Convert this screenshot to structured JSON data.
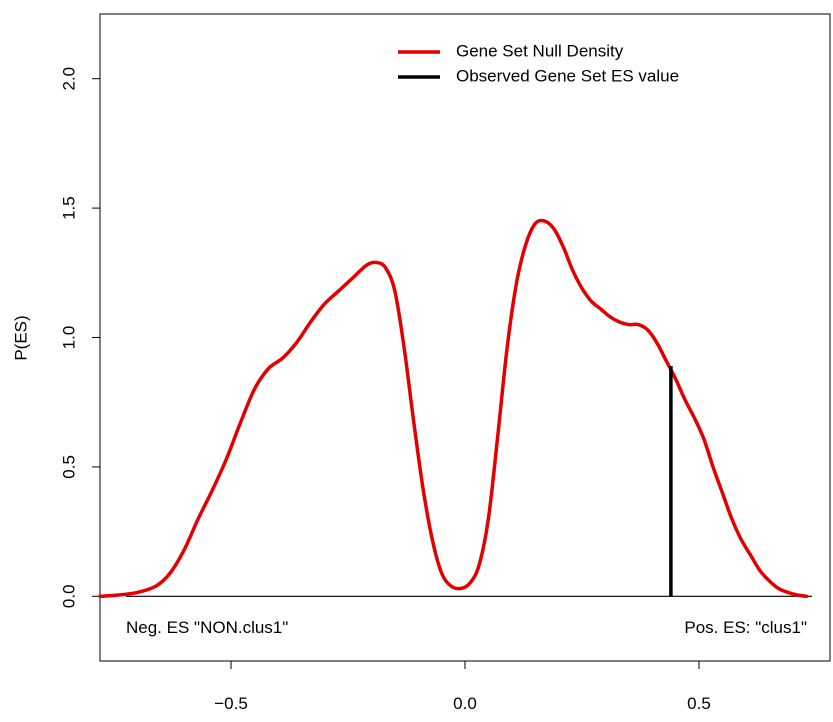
{
  "chart_data": {
    "type": "line",
    "title": "",
    "xlabel": "",
    "ylabel": "P(ES)",
    "xlim": [
      -0.78,
      0.78
    ],
    "ylim": [
      -0.25,
      2.25
    ],
    "x_ticks": [
      {
        "value": -0.5,
        "label": "−0.5"
      },
      {
        "value": 0.0,
        "label": "0.0"
      },
      {
        "value": 0.5,
        "label": "0.5"
      }
    ],
    "y_ticks": [
      {
        "value": 0.0,
        "label": "0.0"
      },
      {
        "value": 0.5,
        "label": "0.5"
      },
      {
        "value": 1.0,
        "label": "1.0"
      },
      {
        "value": 1.5,
        "label": "1.5"
      },
      {
        "value": 2.0,
        "label": "2.0"
      }
    ],
    "grid": false,
    "legend_position": "top-right",
    "series": [
      {
        "name": "Gene Set Null Density",
        "color": "#e30000",
        "points": [
          [
            -0.78,
            0.0
          ],
          [
            -0.74,
            0.005
          ],
          [
            -0.7,
            0.015
          ],
          [
            -0.66,
            0.04
          ],
          [
            -0.63,
            0.09
          ],
          [
            -0.6,
            0.18
          ],
          [
            -0.57,
            0.3
          ],
          [
            -0.54,
            0.41
          ],
          [
            -0.51,
            0.53
          ],
          [
            -0.48,
            0.67
          ],
          [
            -0.45,
            0.8
          ],
          [
            -0.42,
            0.88
          ],
          [
            -0.39,
            0.92
          ],
          [
            -0.36,
            0.98
          ],
          [
            -0.33,
            1.06
          ],
          [
            -0.3,
            1.13
          ],
          [
            -0.27,
            1.18
          ],
          [
            -0.24,
            1.23
          ],
          [
            -0.21,
            1.28
          ],
          [
            -0.19,
            1.29
          ],
          [
            -0.17,
            1.27
          ],
          [
            -0.15,
            1.18
          ],
          [
            -0.13,
            0.96
          ],
          [
            -0.11,
            0.68
          ],
          [
            -0.09,
            0.42
          ],
          [
            -0.07,
            0.22
          ],
          [
            -0.05,
            0.09
          ],
          [
            -0.03,
            0.04
          ],
          [
            -0.01,
            0.03
          ],
          [
            0.01,
            0.05
          ],
          [
            0.03,
            0.12
          ],
          [
            0.05,
            0.3
          ],
          [
            0.07,
            0.62
          ],
          [
            0.09,
            0.96
          ],
          [
            0.11,
            1.21
          ],
          [
            0.13,
            1.36
          ],
          [
            0.15,
            1.44
          ],
          [
            0.17,
            1.45
          ],
          [
            0.19,
            1.42
          ],
          [
            0.21,
            1.35
          ],
          [
            0.23,
            1.26
          ],
          [
            0.25,
            1.19
          ],
          [
            0.27,
            1.14
          ],
          [
            0.29,
            1.11
          ],
          [
            0.31,
            1.08
          ],
          [
            0.33,
            1.06
          ],
          [
            0.35,
            1.05
          ],
          [
            0.37,
            1.05
          ],
          [
            0.39,
            1.03
          ],
          [
            0.41,
            0.98
          ],
          [
            0.43,
            0.91
          ],
          [
            0.45,
            0.84
          ],
          [
            0.47,
            0.76
          ],
          [
            0.49,
            0.69
          ],
          [
            0.51,
            0.61
          ],
          [
            0.53,
            0.5
          ],
          [
            0.55,
            0.4
          ],
          [
            0.57,
            0.3
          ],
          [
            0.59,
            0.22
          ],
          [
            0.61,
            0.16
          ],
          [
            0.63,
            0.1
          ],
          [
            0.65,
            0.06
          ],
          [
            0.67,
            0.03
          ],
          [
            0.69,
            0.015
          ],
          [
            0.71,
            0.005
          ],
          [
            0.73,
            0.0
          ]
        ]
      },
      {
        "name": "Observed Gene Set ES value",
        "color": "#000000",
        "points": [
          [
            0.44,
            0.0
          ],
          [
            0.44,
            0.89
          ]
        ]
      }
    ],
    "baseline": {
      "y": 0.0,
      "x_range": [
        -0.78,
        0.78
      ],
      "color": "#000000"
    },
    "annotations": [
      {
        "text": "Neg. ES \"NON.clus1\"",
        "position": "bottom-left"
      },
      {
        "text": "Pos. ES: \"clus1\"",
        "position": "bottom-right"
      }
    ]
  }
}
